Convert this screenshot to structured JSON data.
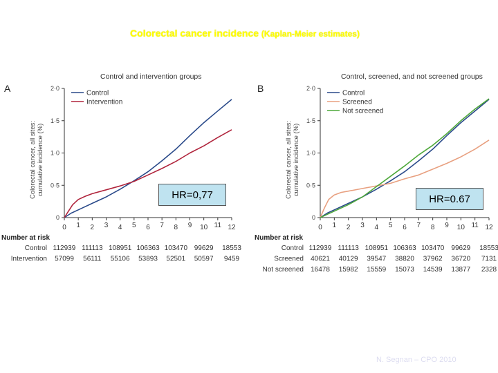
{
  "slide": {
    "title_main": "Colorectal cancer incidence",
    "title_sub": "(Kaplan-Meier estimates)",
    "credit": "N. Segnan – CPO 2010"
  },
  "colors": {
    "control": "#2a4a8a",
    "intervention": "#b0243c",
    "screened": "#e8a080",
    "not_screened": "#4ea83a",
    "hr_box": "#bfe3f0"
  },
  "number_at_risk_label": "Number at risk",
  "chart_data": [
    {
      "type": "line",
      "panel_label": "A",
      "title": "Control and intervention groups",
      "ylabel": "Colorectal cancer, all sites: cumulative incidence (%)",
      "xlim": [
        0,
        12
      ],
      "ylim": [
        0,
        2.0
      ],
      "x_ticks": [
        "0",
        "1",
        "2",
        "3",
        "4",
        "5",
        "6",
        "7",
        "8",
        "9",
        "10",
        "11",
        "12"
      ],
      "y_ticks": [
        "0",
        "0·5",
        "1·0",
        "1·5",
        "2·0"
      ],
      "legend": "top-left",
      "annotation": "HR=0,77",
      "series": [
        {
          "name": "Control",
          "color": "#2a4a8a",
          "x": [
            0,
            0.5,
            1,
            2,
            3,
            4,
            5,
            6,
            7,
            8,
            9,
            10,
            11,
            12
          ],
          "y": [
            0,
            0.07,
            0.12,
            0.22,
            0.32,
            0.44,
            0.57,
            0.71,
            0.88,
            1.06,
            1.27,
            1.47,
            1.65,
            1.83
          ]
        },
        {
          "name": "Intervention",
          "color": "#b0243c",
          "x": [
            0,
            0.3,
            0.6,
            1,
            1.5,
            2,
            3,
            4,
            5,
            6,
            7,
            8,
            9,
            10,
            11,
            12
          ],
          "y": [
            0,
            0.1,
            0.2,
            0.28,
            0.33,
            0.37,
            0.43,
            0.49,
            0.56,
            0.66,
            0.76,
            0.87,
            1.0,
            1.11,
            1.24,
            1.36
          ]
        }
      ],
      "risk_table": {
        "x": [
          0,
          2,
          4,
          6,
          8,
          10,
          12
        ],
        "rows": [
          {
            "label": "Control",
            "values": [
              "112939",
              "111113",
              "108951",
              "106363",
              "103470",
              "99629",
              "18553"
            ]
          },
          {
            "label": "Intervention",
            "values": [
              "57099",
              "56111",
              "55106",
              "53893",
              "52501",
              "50597",
              "9459"
            ]
          }
        ]
      }
    },
    {
      "type": "line",
      "panel_label": "B",
      "title": "Control, screened, and not screened groups",
      "ylabel": "Colorectal cancer, all sites: cumulative incidence (%)",
      "xlim": [
        0,
        12
      ],
      "ylim": [
        0,
        2.0
      ],
      "x_ticks": [
        "0",
        "1",
        "2",
        "3",
        "4",
        "5",
        "6",
        "7",
        "8",
        "9",
        "10",
        "11",
        "12"
      ],
      "y_ticks": [
        "0",
        "0·5",
        "1·0",
        "1·5",
        "2·0"
      ],
      "legend": "top-left",
      "annotation": "HR=0.67",
      "series": [
        {
          "name": "Control",
          "color": "#2a4a8a",
          "x": [
            0,
            0.5,
            1,
            2,
            3,
            4,
            5,
            6,
            7,
            8,
            9,
            10,
            11,
            12
          ],
          "y": [
            0,
            0.07,
            0.12,
            0.22,
            0.32,
            0.44,
            0.57,
            0.71,
            0.88,
            1.06,
            1.27,
            1.47,
            1.65,
            1.83
          ]
        },
        {
          "name": "Screened",
          "color": "#e8a080",
          "x": [
            0,
            0.3,
            0.6,
            1,
            1.5,
            2,
            3,
            4,
            5,
            6,
            7,
            8,
            9,
            10,
            11,
            12
          ],
          "y": [
            0,
            0.15,
            0.28,
            0.35,
            0.39,
            0.41,
            0.45,
            0.49,
            0.53,
            0.6,
            0.66,
            0.75,
            0.84,
            0.94,
            1.06,
            1.2
          ]
        },
        {
          "name": "Not screened",
          "color": "#4ea83a",
          "x": [
            0,
            0.5,
            1,
            2,
            3,
            4,
            5,
            6,
            7,
            8,
            9,
            10,
            11,
            12
          ],
          "y": [
            0,
            0.05,
            0.1,
            0.2,
            0.32,
            0.48,
            0.64,
            0.8,
            0.97,
            1.12,
            1.3,
            1.5,
            1.68,
            1.84
          ]
        }
      ],
      "risk_table": {
        "x": [
          0,
          2,
          4,
          6,
          8,
          10,
          12
        ],
        "rows": [
          {
            "label": "Control",
            "values": [
              "112939",
              "111113",
              "108951",
              "106363",
              "103470",
              "99629",
              "18553"
            ]
          },
          {
            "label": "Screened",
            "values": [
              "40621",
              "40129",
              "39547",
              "38820",
              "37962",
              "36720",
              "7131"
            ]
          },
          {
            "label": "Not screened",
            "values": [
              "16478",
              "15982",
              "15559",
              "15073",
              "14539",
              "13877",
              "2328"
            ]
          }
        ]
      }
    }
  ]
}
